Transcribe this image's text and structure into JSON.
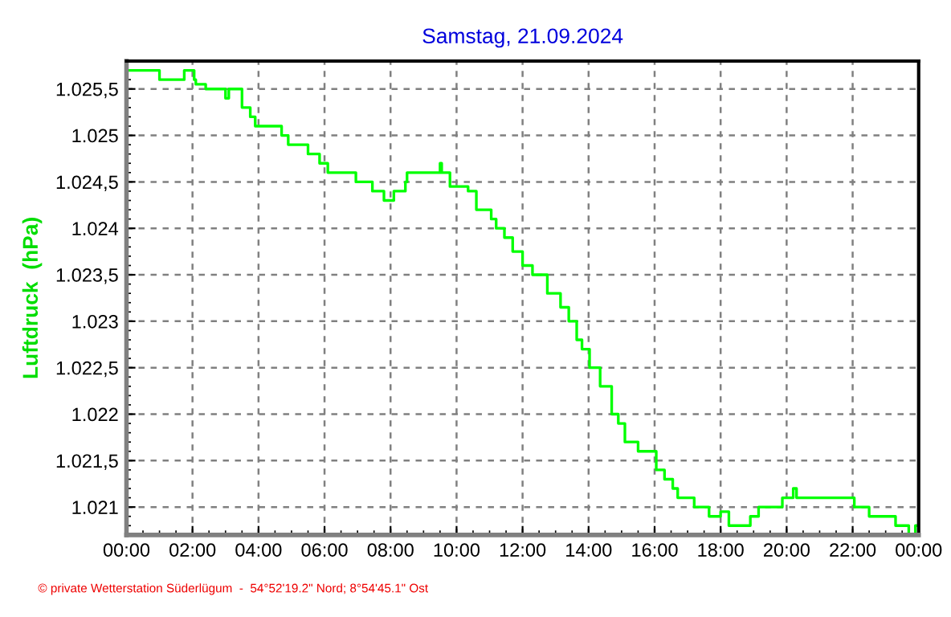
{
  "chart_data": {
    "type": "step",
    "title": "Samstag, 21.09.2024",
    "ylabel": "Luftdruck  (hPa)",
    "annotations": [
      "© private Wetterstation Süderlügum  -  54°52'19.2\" Nord; 8°54'45.1\" Ost"
    ],
    "series": [
      {
        "color": "#00ff00",
        "x": [
          0,
          0.7,
          1.0,
          1.75,
          2.05,
          2.1,
          2.4,
          3.0,
          3.1,
          3.5,
          3.75,
          3.9,
          4.7,
          4.9,
          5.2,
          5.5,
          5.85,
          6.1,
          6.95,
          7.45,
          7.8,
          8.1,
          8.45,
          8.5,
          9.5,
          9.55,
          9.8,
          10.35,
          10.6,
          11.05,
          11.2,
          11.45,
          11.7,
          12.0,
          12.3,
          12.75,
          13.15,
          13.4,
          13.64,
          13.8,
          14.03,
          14.35,
          14.7,
          14.9,
          15.1,
          15.5,
          16.05,
          16.3,
          16.55,
          16.7,
          17.2,
          17.65,
          18.0,
          18.25,
          18.9,
          19.15,
          19.87,
          20.2,
          20.3,
          22.05,
          22.5,
          23.3,
          23.7,
          23.9,
          24.0
        ],
        "values": [
          1025.7,
          1025.7,
          1025.6,
          1025.7,
          1025.6,
          1025.55,
          1025.5,
          1025.4,
          1025.5,
          1025.3,
          1025.2,
          1025.1,
          1025.0,
          1024.9,
          1024.9,
          1024.8,
          1024.7,
          1024.6,
          1024.5,
          1024.4,
          1024.3,
          1024.4,
          1024.5,
          1024.6,
          1024.7,
          1024.6,
          1024.45,
          1024.4,
          1024.2,
          1024.1,
          1024.0,
          1023.9,
          1023.75,
          1023.6,
          1023.5,
          1023.3,
          1023.15,
          1023.0,
          1022.8,
          1022.7,
          1022.5,
          1022.3,
          1022.0,
          1021.9,
          1021.7,
          1021.6,
          1021.4,
          1021.3,
          1021.2,
          1021.1,
          1021.0,
          1020.9,
          1020.95,
          1020.8,
          1020.9,
          1021.0,
          1021.1,
          1021.2,
          1021.1,
          1021.0,
          1020.9,
          1020.8,
          1020.7,
          1020.8,
          1020.75
        ]
      }
    ],
    "xlim": [
      0,
      24
    ],
    "ylim": [
      1020.7,
      1025.8
    ],
    "xticks": [
      {
        "value": 0,
        "label": "00:00"
      },
      {
        "value": 2,
        "label": "02:00"
      },
      {
        "value": 4,
        "label": "04:00"
      },
      {
        "value": 6,
        "label": "06:00"
      },
      {
        "value": 8,
        "label": "08:00"
      },
      {
        "value": 10,
        "label": "10:00"
      },
      {
        "value": 12,
        "label": "12:00"
      },
      {
        "value": 14,
        "label": "14:00"
      },
      {
        "value": 16,
        "label": "16:00"
      },
      {
        "value": 18,
        "label": "18:00"
      },
      {
        "value": 20,
        "label": "20:00"
      },
      {
        "value": 22,
        "label": "22:00"
      },
      {
        "value": 24,
        "label": "00:00"
      }
    ],
    "yticks": [
      {
        "value": 1021,
        "label": "1.021"
      },
      {
        "value": 1021.5,
        "label": "1.021,5"
      },
      {
        "value": 1022,
        "label": "1.022"
      },
      {
        "value": 1022.5,
        "label": "1.022,5"
      },
      {
        "value": 1023,
        "label": "1.023"
      },
      {
        "value": 1023.5,
        "label": "1.023,5"
      },
      {
        "value": 1024,
        "label": "1.024"
      },
      {
        "value": 1024.5,
        "label": "1.024,5"
      },
      {
        "value": 1025,
        "label": "1.025"
      },
      {
        "value": 1025.5,
        "label": "1.025,5"
      }
    ],
    "grid": true,
    "line_style": "solid"
  }
}
